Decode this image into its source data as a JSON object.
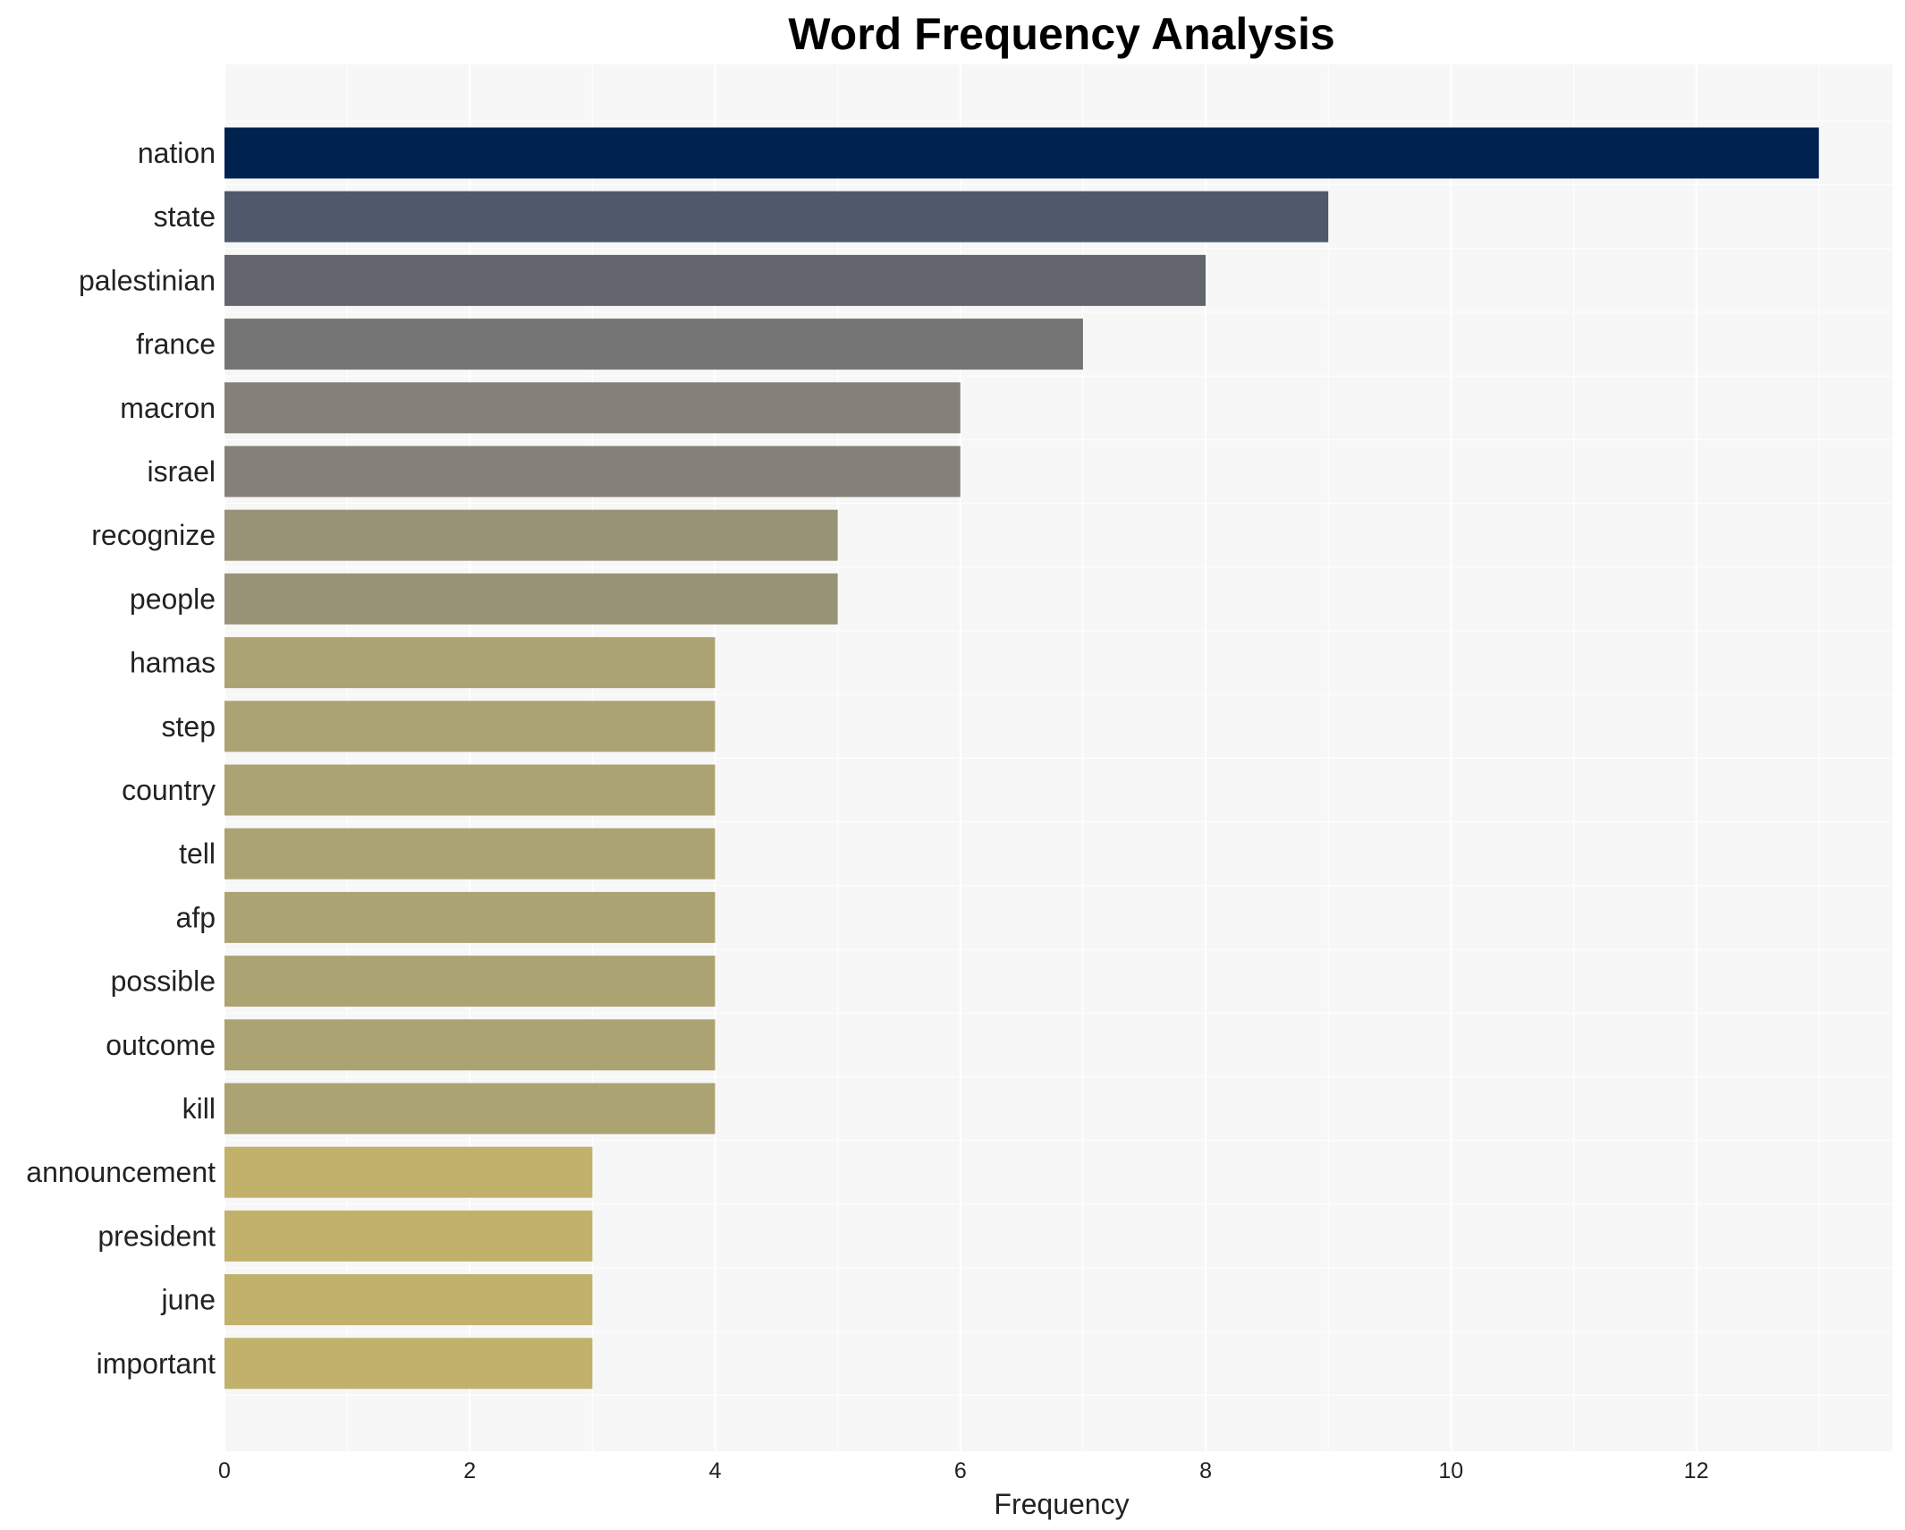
{
  "chart_data": {
    "type": "bar",
    "orientation": "horizontal",
    "title": "Word Frequency Analysis",
    "xlabel": "Frequency",
    "ylabel": "",
    "xlim": [
      0,
      13.6
    ],
    "xticks": [
      0,
      2,
      4,
      6,
      8,
      10,
      12
    ],
    "grid": true,
    "legend": "none",
    "categories": [
      "nation",
      "state",
      "palestinian",
      "france",
      "macron",
      "israel",
      "recognize",
      "people",
      "hamas",
      "step",
      "country",
      "tell",
      "afp",
      "possible",
      "outcome",
      "kill",
      "announcement",
      "president",
      "june",
      "important"
    ],
    "values": [
      13,
      9,
      8,
      7,
      6,
      6,
      5,
      5,
      4,
      4,
      4,
      4,
      4,
      4,
      4,
      4,
      3,
      3,
      3,
      3
    ],
    "colors": [
      "#00224e",
      "#50586c",
      "#63666f",
      "#757575",
      "#858179",
      "#858179",
      "#989276",
      "#989276",
      "#aca373",
      "#aca373",
      "#aca373",
      "#aca373",
      "#aca373",
      "#aca373",
      "#aca373",
      "#aca373",
      "#c1b16a",
      "#c1b16a",
      "#c1b16a",
      "#c1b16a"
    ],
    "plot_background": "#f7f7f7",
    "grid_color": "#ffffff"
  }
}
